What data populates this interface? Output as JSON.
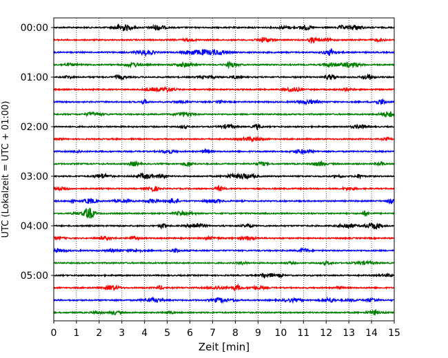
{
  "chart_data": {
    "type": "line",
    "title": "",
    "xlabel": "Zeit  [min]",
    "ylabel": "UTC (Lokalzeit = UTC + 01:00)",
    "xlim": [
      0,
      15
    ],
    "x_ticks": [
      0,
      1,
      2,
      3,
      4,
      5,
      6,
      7,
      8,
      9,
      10,
      11,
      12,
      13,
      14,
      15
    ],
    "x_tick_labels": [
      "0",
      "1",
      "2",
      "3",
      "4",
      "5",
      "6",
      "7",
      "8",
      "9",
      "10",
      "11",
      "12",
      "13",
      "14",
      "15"
    ],
    "y_tick_labels": [
      "00:00",
      "01:00",
      "02:00",
      "03:00",
      "04:00",
      "05:00"
    ],
    "rows_per_hour": 4,
    "minutes_per_row": 15,
    "trace_count": 24,
    "trace_colors": [
      "#000000",
      "#ff0000",
      "#0000ff",
      "#008000"
    ],
    "vertical_grid": true,
    "grid_style": "dotted"
  }
}
